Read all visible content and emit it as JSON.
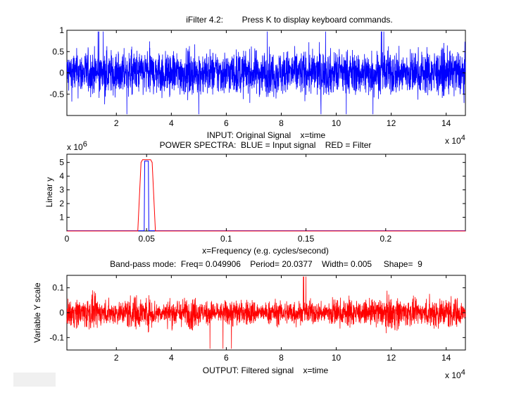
{
  "figure": {
    "title": "iFilter 4.2:        Press K to display keyboard commands."
  },
  "chart_data": [
    {
      "type": "line",
      "title": "",
      "xlabel": "INPUT: Original Signal    x=time",
      "ylabel": "",
      "x_exponent": "x 10",
      "x_exponent_power": "4",
      "xlim": [
        0.2,
        14.7
      ],
      "ylim": [
        -1,
        1
      ],
      "xticks": [
        "2",
        "4",
        "6",
        "8",
        "10",
        "12",
        "14"
      ],
      "xtick_values": [
        2,
        4,
        6,
        8,
        10,
        12,
        14
      ],
      "yticks": [
        "1",
        "0.5",
        "0",
        "-0.5"
      ],
      "ytick_values": [
        1,
        0.5,
        0,
        -0.5
      ],
      "grid": false,
      "series": [
        {
          "color": "#0000ff",
          "points": 2600,
          "amplitude": 0.55,
          "peak": 0.97,
          "envelope": "uniform"
        }
      ]
    },
    {
      "type": "line",
      "title": "POWER SPECTRA:  BLUE = Input signal    RED = Filter",
      "xlabel": "x=Frequency (e.g. cycles/second)",
      "ylabel": "Linear y",
      "y_exponent": "x 10",
      "y_exponent_power": "6",
      "xlim": [
        0,
        0.25
      ],
      "ylim": [
        0,
        5.6
      ],
      "xticks": [
        "0",
        "0.05",
        "0.1",
        "0.15",
        "0.2"
      ],
      "xtick_values": [
        0,
        0.05,
        0.1,
        0.15,
        0.2
      ],
      "yticks": [
        "5",
        "4",
        "3",
        "2",
        "1"
      ],
      "ytick_values": [
        5,
        4,
        3,
        2,
        1
      ],
      "grid": false,
      "series": [
        {
          "color": "#0000ff",
          "x": [
            0,
            0.0485,
            0.0488,
            0.0511,
            0.0514,
            0.25
          ],
          "y": [
            0.02,
            0.02,
            5.1,
            5.1,
            0.02,
            0.02
          ]
        },
        {
          "color": "#ff0000",
          "x": [
            0,
            0.0445,
            0.0465,
            0.0475,
            0.0525,
            0.0535,
            0.0555,
            0.25
          ],
          "y": [
            0,
            0,
            5.0,
            5.2,
            5.2,
            5.0,
            0,
            0
          ]
        }
      ]
    },
    {
      "type": "line",
      "title": "Band-pass mode:  Freq= 0.049906    Period= 20.0377    Width= 0.005     Shape=  9",
      "xlabel": "OUTPUT: Filtered signal    x=time",
      "ylabel": "Variable Y scale",
      "x_exponent": "x 10",
      "x_exponent_power": "4",
      "xlim": [
        0.2,
        14.7
      ],
      "ylim": [
        -0.15,
        0.15
      ],
      "xticks": [
        "2",
        "4",
        "6",
        "8",
        "10",
        "12",
        "14"
      ],
      "xtick_values": [
        2,
        4,
        6,
        8,
        10,
        12,
        14
      ],
      "yticks": [
        "0.1",
        "0",
        "-0.1"
      ],
      "ytick_values": [
        0.1,
        0,
        -0.1
      ],
      "grid": false,
      "series": [
        {
          "color": "#ff0000",
          "points": 2600,
          "amplitude": 0.06,
          "peak": 0.145,
          "envelope": "modulated"
        }
      ]
    }
  ]
}
